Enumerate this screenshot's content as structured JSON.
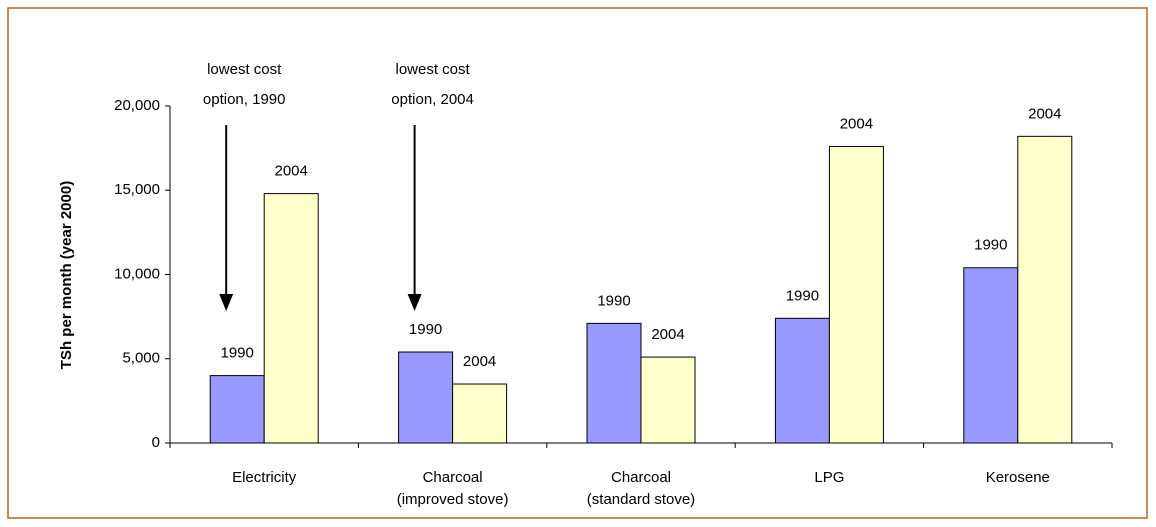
{
  "chart_data": {
    "type": "bar",
    "y_label": "TSh per month (year 2000)",
    "categories": [
      [
        "Electricity"
      ],
      [
        "Charcoal",
        "(improved stove)"
      ],
      [
        "Charcoal",
        "(standard stove)"
      ],
      [
        "LPG"
      ],
      [
        "Kerosene"
      ]
    ],
    "series": [
      {
        "name": "1990",
        "color": "#9999ff",
        "values": [
          4000,
          5400,
          7100,
          7400,
          10400
        ]
      },
      {
        "name": "2004",
        "color": "#ffffcc",
        "values": [
          14800,
          3500,
          5100,
          17600,
          18200
        ]
      }
    ],
    "ylim": [
      0,
      20000
    ],
    "yticks": [
      0,
      {
        "value": 5000,
        "label": "5,000"
      },
      {
        "value": 10000,
        "label": "10,000"
      },
      {
        "value": 15000,
        "label": "15,000"
      },
      {
        "value": 20000,
        "label": "20,000"
      }
    ],
    "annotations": [
      {
        "lines": [
          "lowest cost",
          "option, 1990"
        ],
        "category": 0
      },
      {
        "lines": [
          "lowest cost",
          "option, 2004"
        ],
        "category": 1
      }
    ]
  }
}
